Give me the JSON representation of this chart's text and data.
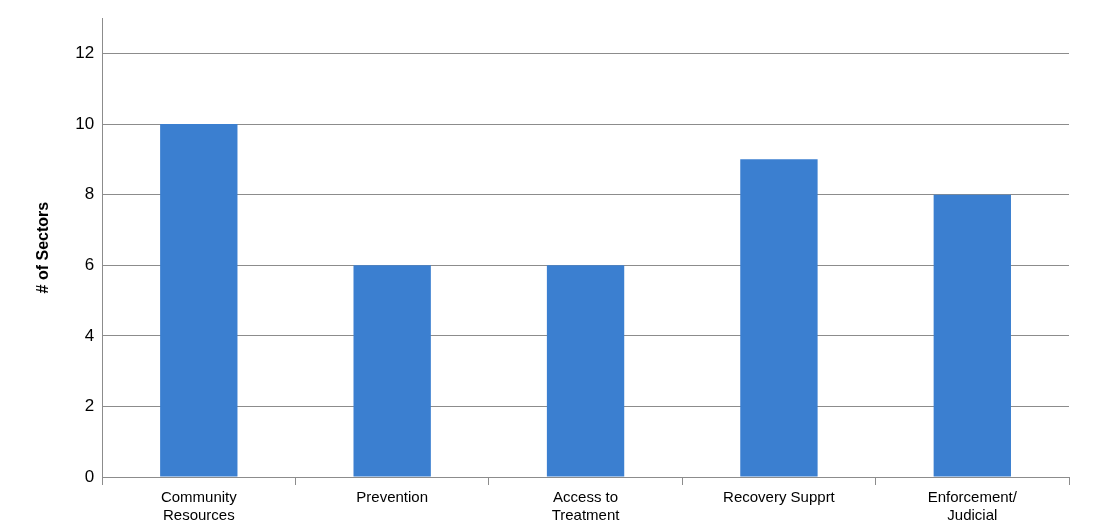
{
  "chart_data": {
    "type": "bar",
    "ylabel": "# of Sectors",
    "categories": [
      "Community Resources",
      "Prevention",
      "Access to Treatment",
      "Recovery Supprt",
      "Enforcement/ Judicial"
    ],
    "values": [
      10,
      6,
      6,
      9,
      8
    ],
    "color": "#3b7fd0",
    "ylim": [
      0,
      13
    ],
    "yticks": [
      0,
      2,
      4,
      6,
      8,
      10,
      12
    ],
    "grid": "y",
    "legend": false
  }
}
